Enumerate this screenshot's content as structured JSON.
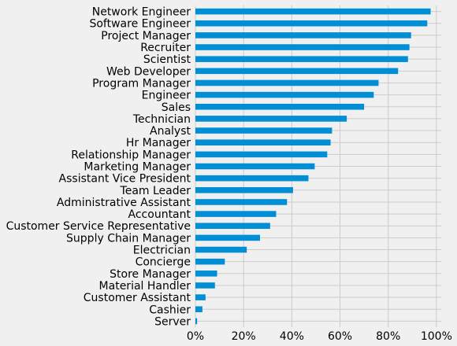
{
  "chart_data": {
    "type": "bar",
    "orientation": "horizontal",
    "title": "",
    "xlabel": "",
    "ylabel": "",
    "categories": [
      "Network Engineer",
      "Software Engineer",
      "Project Manager",
      "Recruiter",
      "Scientist",
      "Web Developer",
      "Program Manager",
      "Engineer",
      "Sales",
      "Technician",
      "Analyst",
      "Hr Manager",
      "Relationship Manager",
      "Marketing Manager",
      "Assistant Vice President",
      "Team Leader",
      "Administrative Assistant",
      "Accountant",
      "Customer Service Representative",
      "Supply Chain Manager",
      "Electrician",
      "Concierge",
      "Store Manager",
      "Material Handler",
      "Customer Assistant",
      "Cashier",
      "Server"
    ],
    "values": [
      0.976,
      0.962,
      0.895,
      0.888,
      0.882,
      0.841,
      0.76,
      0.74,
      0.7,
      0.628,
      0.567,
      0.561,
      0.547,
      0.495,
      0.469,
      0.405,
      0.38,
      0.335,
      0.31,
      0.268,
      0.213,
      0.122,
      0.09,
      0.081,
      0.042,
      0.029,
      0.007
    ],
    "xlim": [
      0,
      1.02
    ],
    "xticks": [
      0,
      0.2,
      0.4,
      0.6,
      0.8,
      1.0
    ],
    "xtick_labels": [
      "0%",
      "20%",
      "40%",
      "60%",
      "80%",
      "100%"
    ],
    "grid": true,
    "bar_color": "#008fd5",
    "background": "#f0f0f0",
    "grid_color": "#cbcbcb"
  }
}
